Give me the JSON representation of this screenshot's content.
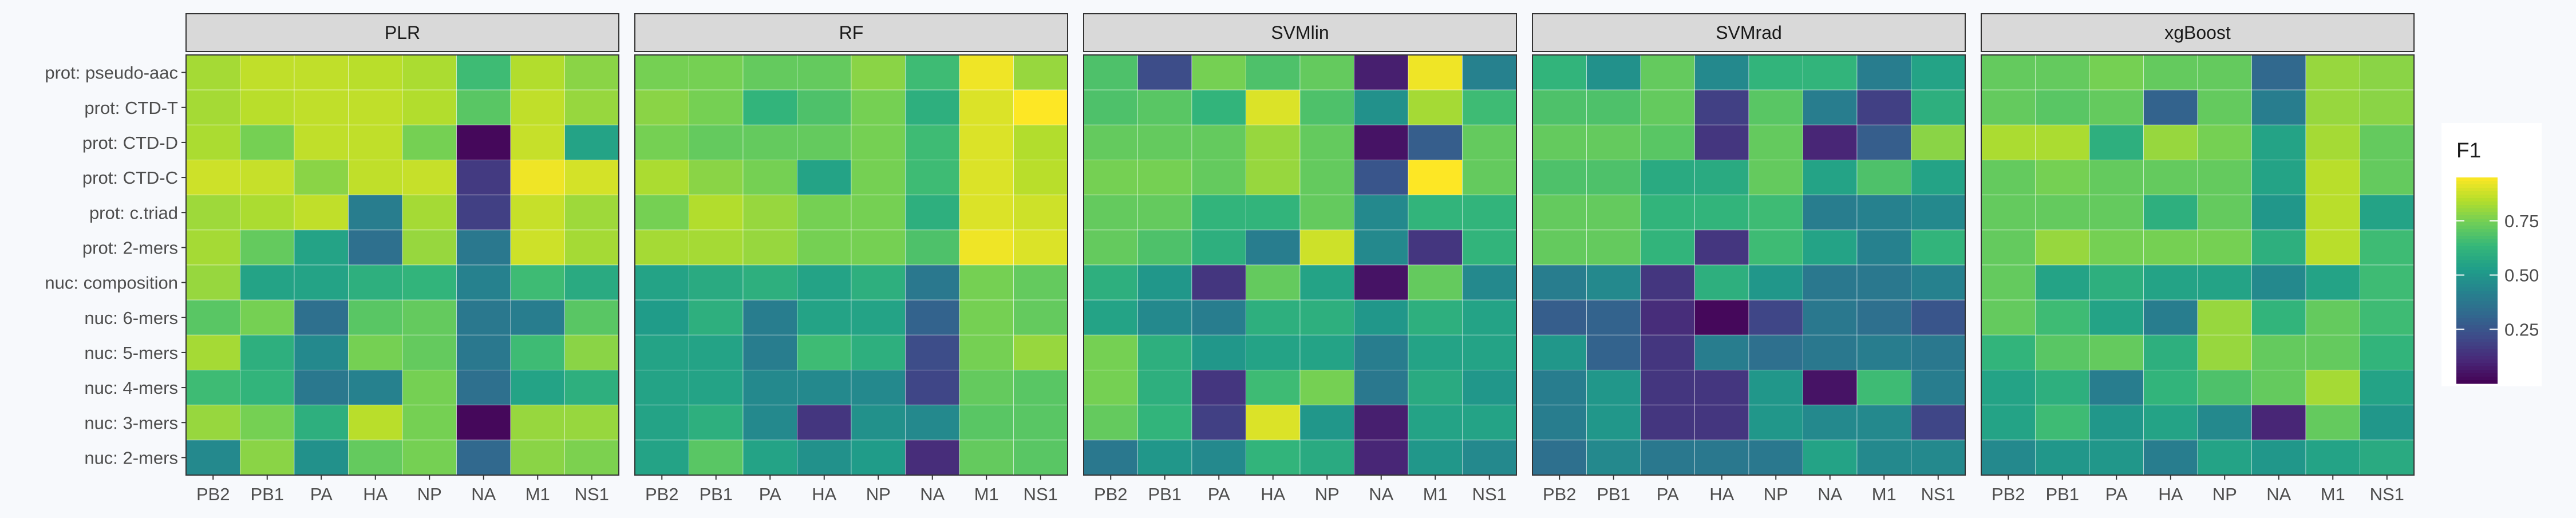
{
  "chart_data": {
    "type": "heatmap",
    "facet_variable": "model",
    "facets": [
      "PLR",
      "RF",
      "SVMlin",
      "SVMrad",
      "xgBoost"
    ],
    "x_categories": [
      "PB2",
      "PB1",
      "PA",
      "HA",
      "NP",
      "NA",
      "M1",
      "NS1"
    ],
    "y_categories": [
      "prot: pseudo-aac",
      "prot: CTD-T",
      "prot: CTD-D",
      "prot: CTD-C",
      "prot: c.triad",
      "prot: 2-mers",
      "nuc: composition",
      "nuc: 6-mers",
      "nuc: 5-mers",
      "nuc: 4-mers",
      "nuc: 3-mers",
      "nuc: 2-mers"
    ],
    "fill_variable": "F1",
    "color_scale": {
      "name": "viridis",
      "range": [
        0,
        0.95
      ],
      "ticks": [
        0.25,
        0.5,
        0.75
      ],
      "tick_labels": [
        "0.25",
        "0.50",
        "0.75"
      ],
      "stops": [
        "#440154",
        "#482878",
        "#3e4a89",
        "#31688e",
        "#26828e",
        "#1f9e89",
        "#35b779",
        "#6ece58",
        "#b5de2b",
        "#fde725"
      ]
    },
    "legend": {
      "title": "F1",
      "position": "right"
    },
    "panels": [
      {
        "name": "PLR",
        "values": [
          [
            0.82,
            0.86,
            0.86,
            0.85,
            0.83,
            0.65,
            0.84,
            0.78
          ],
          [
            0.82,
            0.85,
            0.86,
            0.86,
            0.84,
            0.7,
            0.86,
            0.8
          ],
          [
            0.83,
            0.75,
            0.86,
            0.86,
            0.75,
            0.02,
            0.87,
            0.55
          ],
          [
            0.88,
            0.87,
            0.78,
            0.86,
            0.87,
            0.16,
            0.93,
            0.89
          ],
          [
            0.81,
            0.83,
            0.86,
            0.4,
            0.82,
            0.18,
            0.87,
            0.81
          ],
          [
            0.82,
            0.72,
            0.55,
            0.35,
            0.8,
            0.38,
            0.88,
            0.82
          ],
          [
            0.8,
            0.55,
            0.55,
            0.6,
            0.62,
            0.42,
            0.65,
            0.58
          ],
          [
            0.7,
            0.75,
            0.35,
            0.7,
            0.72,
            0.38,
            0.4,
            0.7
          ],
          [
            0.82,
            0.6,
            0.45,
            0.75,
            0.72,
            0.38,
            0.65,
            0.78
          ],
          [
            0.65,
            0.62,
            0.38,
            0.42,
            0.75,
            0.35,
            0.55,
            0.6
          ],
          [
            0.8,
            0.75,
            0.6,
            0.85,
            0.75,
            0.02,
            0.8,
            0.8
          ],
          [
            0.45,
            0.78,
            0.48,
            0.72,
            0.75,
            0.32,
            0.78,
            0.76
          ]
        ]
      },
      {
        "name": "RF",
        "values": [
          [
            0.75,
            0.75,
            0.72,
            0.72,
            0.78,
            0.65,
            0.93,
            0.8
          ],
          [
            0.78,
            0.75,
            0.62,
            0.68,
            0.75,
            0.6,
            0.9,
            0.95
          ],
          [
            0.75,
            0.72,
            0.72,
            0.72,
            0.75,
            0.65,
            0.9,
            0.84
          ],
          [
            0.83,
            0.78,
            0.75,
            0.55,
            0.75,
            0.65,
            0.9,
            0.85
          ],
          [
            0.75,
            0.84,
            0.8,
            0.75,
            0.75,
            0.6,
            0.9,
            0.88
          ],
          [
            0.82,
            0.82,
            0.8,
            0.75,
            0.75,
            0.68,
            0.93,
            0.9
          ],
          [
            0.55,
            0.58,
            0.6,
            0.55,
            0.6,
            0.38,
            0.75,
            0.72
          ],
          [
            0.52,
            0.6,
            0.4,
            0.55,
            0.55,
            0.3,
            0.75,
            0.72
          ],
          [
            0.55,
            0.55,
            0.4,
            0.65,
            0.6,
            0.22,
            0.75,
            0.8
          ],
          [
            0.55,
            0.55,
            0.45,
            0.45,
            0.45,
            0.2,
            0.72,
            0.7
          ],
          [
            0.55,
            0.6,
            0.45,
            0.15,
            0.48,
            0.45,
            0.7,
            0.7
          ],
          [
            0.55,
            0.7,
            0.55,
            0.48,
            0.52,
            0.12,
            0.72,
            0.7
          ]
        ]
      },
      {
        "name": "SVMlin",
        "values": [
          [
            0.68,
            0.22,
            0.75,
            0.68,
            0.72,
            0.08,
            0.93,
            0.42
          ],
          [
            0.68,
            0.7,
            0.62,
            0.9,
            0.68,
            0.48,
            0.82,
            0.65
          ],
          [
            0.72,
            0.72,
            0.72,
            0.8,
            0.72,
            0.05,
            0.28,
            0.72
          ],
          [
            0.75,
            0.75,
            0.72,
            0.8,
            0.72,
            0.25,
            0.95,
            0.72
          ],
          [
            0.72,
            0.72,
            0.62,
            0.62,
            0.72,
            0.45,
            0.62,
            0.62
          ],
          [
            0.72,
            0.68,
            0.6,
            0.4,
            0.88,
            0.45,
            0.15,
            0.62
          ],
          [
            0.6,
            0.5,
            0.15,
            0.72,
            0.55,
            0.05,
            0.72,
            0.45
          ],
          [
            0.55,
            0.45,
            0.4,
            0.6,
            0.6,
            0.5,
            0.6,
            0.55
          ],
          [
            0.75,
            0.6,
            0.5,
            0.55,
            0.55,
            0.4,
            0.55,
            0.55
          ],
          [
            0.75,
            0.6,
            0.15,
            0.65,
            0.75,
            0.38,
            0.58,
            0.5
          ],
          [
            0.72,
            0.62,
            0.18,
            0.9,
            0.5,
            0.08,
            0.55,
            0.55
          ],
          [
            0.38,
            0.5,
            0.45,
            0.62,
            0.58,
            0.1,
            0.5,
            0.45
          ]
        ]
      },
      {
        "name": "SVMrad",
        "values": [
          [
            0.62,
            0.48,
            0.72,
            0.45,
            0.62,
            0.62,
            0.4,
            0.55
          ],
          [
            0.68,
            0.68,
            0.72,
            0.18,
            0.7,
            0.4,
            0.18,
            0.6
          ],
          [
            0.72,
            0.72,
            0.7,
            0.15,
            0.72,
            0.1,
            0.28,
            0.78
          ],
          [
            0.68,
            0.68,
            0.58,
            0.58,
            0.72,
            0.55,
            0.68,
            0.55
          ],
          [
            0.72,
            0.72,
            0.62,
            0.62,
            0.65,
            0.4,
            0.42,
            0.45
          ],
          [
            0.72,
            0.72,
            0.62,
            0.15,
            0.65,
            0.55,
            0.42,
            0.62
          ],
          [
            0.4,
            0.45,
            0.15,
            0.6,
            0.5,
            0.38,
            0.38,
            0.42
          ],
          [
            0.28,
            0.3,
            0.12,
            0.02,
            0.2,
            0.38,
            0.35,
            0.25
          ],
          [
            0.5,
            0.3,
            0.15,
            0.4,
            0.35,
            0.38,
            0.4,
            0.38
          ],
          [
            0.4,
            0.5,
            0.15,
            0.15,
            0.5,
            0.05,
            0.65,
            0.4
          ],
          [
            0.4,
            0.5,
            0.15,
            0.15,
            0.5,
            0.45,
            0.45,
            0.2
          ],
          [
            0.35,
            0.45,
            0.38,
            0.38,
            0.38,
            0.55,
            0.45,
            0.45
          ]
        ]
      },
      {
        "name": "xgBoost",
        "values": [
          [
            0.72,
            0.72,
            0.75,
            0.72,
            0.72,
            0.32,
            0.8,
            0.78
          ],
          [
            0.72,
            0.7,
            0.72,
            0.3,
            0.72,
            0.4,
            0.8,
            0.78
          ],
          [
            0.83,
            0.83,
            0.6,
            0.8,
            0.75,
            0.55,
            0.82,
            0.72
          ],
          [
            0.72,
            0.75,
            0.72,
            0.72,
            0.72,
            0.55,
            0.85,
            0.72
          ],
          [
            0.72,
            0.72,
            0.72,
            0.6,
            0.72,
            0.5,
            0.85,
            0.55
          ],
          [
            0.72,
            0.8,
            0.75,
            0.75,
            0.75,
            0.6,
            0.85,
            0.65
          ],
          [
            0.72,
            0.55,
            0.6,
            0.55,
            0.55,
            0.45,
            0.55,
            0.65
          ],
          [
            0.72,
            0.65,
            0.55,
            0.4,
            0.8,
            0.62,
            0.72,
            0.65
          ],
          [
            0.62,
            0.7,
            0.72,
            0.6,
            0.8,
            0.72,
            0.72,
            0.62
          ],
          [
            0.55,
            0.6,
            0.4,
            0.62,
            0.68,
            0.72,
            0.82,
            0.55
          ],
          [
            0.55,
            0.65,
            0.5,
            0.55,
            0.45,
            0.1,
            0.72,
            0.5
          ],
          [
            0.45,
            0.5,
            0.5,
            0.4,
            0.55,
            0.5,
            0.55,
            0.58
          ]
        ]
      }
    ]
  }
}
